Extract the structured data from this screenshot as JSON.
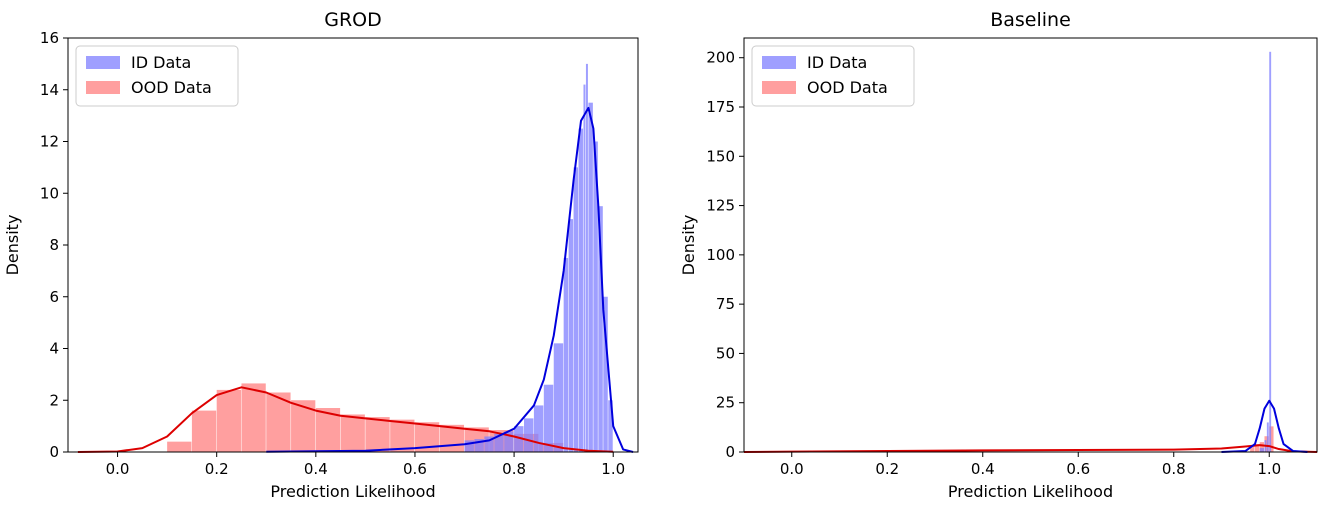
{
  "chart_data": [
    {
      "type": "histogram",
      "title": "GROD",
      "xlabel": "Prediction Likelihood",
      "ylabel": "Density",
      "xlim": [
        -0.1,
        1.05
      ],
      "ylim": [
        0,
        16
      ],
      "xticks": [
        "0.0",
        "0.2",
        "0.4",
        "0.6",
        "0.8",
        "1.0"
      ],
      "yticks": [
        "0",
        "2",
        "4",
        "6",
        "8",
        "10",
        "12",
        "14",
        "16"
      ],
      "legend": {
        "position": "top-left",
        "entries": [
          "ID Data",
          "OOD Data"
        ]
      },
      "series": [
        {
          "name": "ID Data",
          "color": "#7f7fff",
          "kde_color": "#0000dd",
          "kde": {
            "x": [
              0.3,
              0.5,
              0.6,
              0.7,
              0.75,
              0.8,
              0.84,
              0.86,
              0.88,
              0.9,
              0.92,
              0.935,
              0.95,
              0.96,
              0.97,
              0.98,
              1.0,
              1.02,
              1.04
            ],
            "y": [
              0.01,
              0.05,
              0.15,
              0.3,
              0.45,
              0.9,
              1.8,
              2.8,
              4.5,
              7.0,
              10.5,
              12.8,
              13.3,
              12.5,
              9.5,
              5.5,
              1.0,
              0.1,
              0.0
            ]
          },
          "hist": {
            "x": [
              0.7,
              0.72,
              0.74,
              0.76,
              0.78,
              0.8,
              0.82,
              0.84,
              0.86,
              0.88,
              0.9,
              0.91,
              0.92,
              0.93,
              0.94,
              0.945,
              0.95,
              0.96,
              0.97,
              0.98,
              0.99
            ],
            "y": [
              0.45,
              0.5,
              0.6,
              0.7,
              0.8,
              1.0,
              1.3,
              1.8,
              2.6,
              4.2,
              7.5,
              9.0,
              11.0,
              12.5,
              14.2,
              15.0,
              13.5,
              12.0,
              9.5,
              6.0,
              2.0
            ]
          }
        },
        {
          "name": "OOD Data",
          "color": "#ff7f7f",
          "kde_color": "#dd0000",
          "kde": {
            "x": [
              -0.08,
              0.0,
              0.05,
              0.1,
              0.15,
              0.2,
              0.25,
              0.3,
              0.35,
              0.4,
              0.45,
              0.5,
              0.55,
              0.6,
              0.65,
              0.7,
              0.75,
              0.8,
              0.85,
              0.9,
              0.95,
              1.0
            ],
            "y": [
              0.0,
              0.02,
              0.15,
              0.6,
              1.5,
              2.2,
              2.5,
              2.3,
              1.9,
              1.6,
              1.4,
              1.3,
              1.2,
              1.1,
              1.0,
              0.9,
              0.8,
              0.6,
              0.35,
              0.15,
              0.05,
              0.01
            ]
          },
          "hist": {
            "x": [
              0.1,
              0.15,
              0.2,
              0.25,
              0.3,
              0.35,
              0.4,
              0.45,
              0.5,
              0.55,
              0.6,
              0.65,
              0.7,
              0.75,
              0.8,
              0.85
            ],
            "y": [
              0.4,
              1.6,
              2.4,
              2.65,
              2.3,
              2.0,
              1.7,
              1.45,
              1.35,
              1.25,
              1.15,
              1.05,
              0.95,
              0.85,
              0.7,
              0.35
            ]
          }
        }
      ]
    },
    {
      "type": "histogram",
      "title": "Baseline",
      "xlabel": "Prediction Likelihood",
      "ylabel": "Density",
      "xlim": [
        -0.1,
        1.1
      ],
      "ylim": [
        0,
        210
      ],
      "xticks": [
        "0.0",
        "0.2",
        "0.4",
        "0.6",
        "0.8",
        "1.0"
      ],
      "yticks": [
        "0",
        "25",
        "50",
        "75",
        "100",
        "125",
        "150",
        "175",
        "200"
      ],
      "legend": {
        "position": "top-left",
        "entries": [
          "ID Data",
          "OOD Data"
        ]
      },
      "series": [
        {
          "name": "ID Data",
          "color": "#7f7fff",
          "kde_color": "#0000dd",
          "kde": {
            "x": [
              0.9,
              0.95,
              0.97,
              0.98,
              0.99,
              1.0,
              1.01,
              1.02,
              1.03,
              1.05,
              1.08
            ],
            "y": [
              0.0,
              0.5,
              4.0,
              12.0,
              22.0,
              26.0,
              22.0,
              12.0,
              4.0,
              0.5,
              0.0
            ]
          },
          "hist": {
            "x": [
              0.98,
              0.99,
              0.995,
              1.0
            ],
            "y": [
              2.0,
              6.0,
              15.0,
              203.0
            ]
          }
        },
        {
          "name": "OOD Data",
          "color": "#ff7f7f",
          "kde_color": "#dd0000",
          "kde": {
            "x": [
              -0.1,
              0.0,
              0.2,
              0.4,
              0.6,
              0.8,
              0.9,
              0.95,
              0.98,
              1.0,
              1.02,
              1.05,
              1.1
            ],
            "y": [
              0.0,
              0.2,
              0.5,
              0.8,
              1.0,
              1.2,
              1.8,
              2.8,
              3.5,
              3.0,
              1.5,
              0.3,
              0.0
            ]
          },
          "hist": {
            "x": [
              0.96,
              0.97,
              0.98,
              0.99,
              1.0
            ],
            "y": [
              3.0,
              4.0,
              5.0,
              8.0,
              13.0
            ]
          }
        }
      ]
    }
  ]
}
